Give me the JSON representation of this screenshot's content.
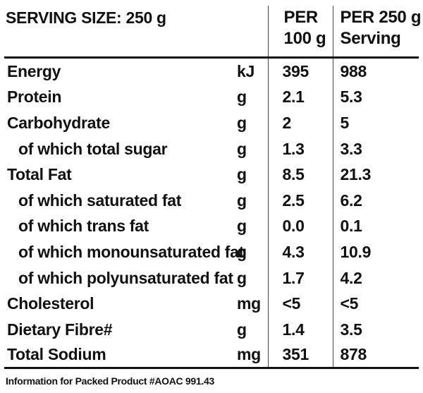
{
  "header": {
    "serving_size": "SERVING SIZE: 250 g",
    "per100_line1": "PER",
    "per100_line2": "100 g",
    "perserv_line1": "PER 250 g",
    "perserv_line2": "Serving"
  },
  "rows": [
    {
      "name": "Energy",
      "unit": "kJ",
      "per100": "395",
      "perserving": "988"
    },
    {
      "name": "Protein",
      "unit": "g",
      "per100": "2.1",
      "perserving": "5.3"
    },
    {
      "name": "Carbohydrate",
      "unit": "g",
      "per100": "2",
      "perserving": "5"
    },
    {
      "name": "of which total sugar",
      "unit": "g",
      "per100": "1.3",
      "perserving": "3.3"
    },
    {
      "name": "Total Fat",
      "unit": "g",
      "per100": "8.5",
      "perserving": "21.3"
    },
    {
      "name": "of which saturated fat",
      "unit": "g",
      "per100": "2.5",
      "perserving": "6.2"
    },
    {
      "name": "of which trans fat",
      "unit": "g",
      "per100": "0.0",
      "perserving": "0.1"
    },
    {
      "name": "of which monounsaturated fat",
      "unit": "g",
      "per100": "4.3",
      "perserving": "10.9"
    },
    {
      "name": "of which polyunsaturated fat",
      "unit": "g",
      "per100": "1.7",
      "perserving": "4.2"
    },
    {
      "name": "Cholesterol",
      "unit": "mg",
      "per100": "<5",
      "perserving": "<5"
    },
    {
      "name": "Dietary Fibre#",
      "unit": "g",
      "per100": "1.4",
      "perserving": "3.5"
    },
    {
      "name": "Total Sodium",
      "unit": "mg",
      "per100": "351",
      "perserving": "878"
    }
  ],
  "footnote": "Information for Packed Product #AOAC 991.43"
}
